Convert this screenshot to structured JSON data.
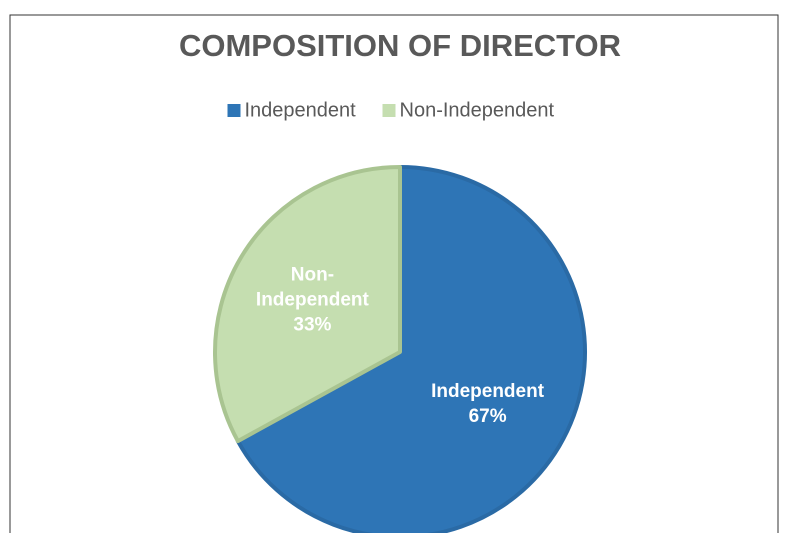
{
  "chart_data": {
    "type": "pie",
    "title": "COMPOSITION OF DIRECTOR",
    "categories": [
      "Independent",
      "Non-Independent"
    ],
    "values": [
      67,
      33
    ],
    "value_labels": [
      "67%",
      "33%"
    ],
    "colors": [
      "#2e75b6",
      "#c5deb0"
    ],
    "legend": "top"
  }
}
